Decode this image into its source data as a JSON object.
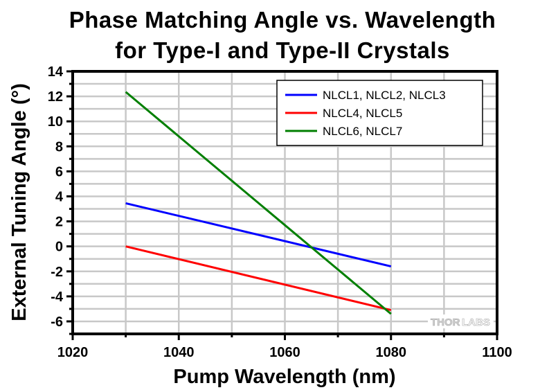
{
  "chart_data": {
    "type": "line",
    "title": "Phase Matching Angle vs. Wavelength",
    "subtitle": "for Type-I and Type-II Crystals",
    "xlabel": "Pump Wavelength (nm)",
    "ylabel": "External Tuning Angle (°)",
    "xlim": [
      1020,
      1100
    ],
    "ylim": [
      -7,
      14
    ],
    "xticks": [
      1020,
      1040,
      1060,
      1080,
      1100
    ],
    "xtick_labels": [
      "1020",
      "1040",
      "1060",
      "1080",
      "1100"
    ],
    "x_minor_step": 10,
    "yticks": [
      -6,
      -4,
      -2,
      0,
      2,
      4,
      6,
      8,
      10,
      12,
      14
    ],
    "ytick_labels": [
      "-6",
      "-4",
      "-2",
      "0",
      "2",
      "4",
      "6",
      "8",
      "10",
      "12",
      "14"
    ],
    "y_minor_step": 1,
    "grid": true,
    "legend_position": "top-right",
    "series": [
      {
        "name": "NLCL1, NLCL2, NLCL3",
        "color": "#0000ff",
        "x": [
          1030,
          1080
        ],
        "y": [
          3.45,
          -1.6
        ]
      },
      {
        "name": "NLCL4, NLCL5",
        "color": "#ff0000",
        "x": [
          1030,
          1080
        ],
        "y": [
          0.0,
          -5.1
        ]
      },
      {
        "name": "NLCL6, NLCL7",
        "color": "#007f00",
        "x": [
          1030,
          1080
        ],
        "y": [
          12.35,
          -5.4
        ]
      }
    ],
    "watermark": {
      "text_dark": "THOR",
      "text_light": "LABS"
    }
  }
}
